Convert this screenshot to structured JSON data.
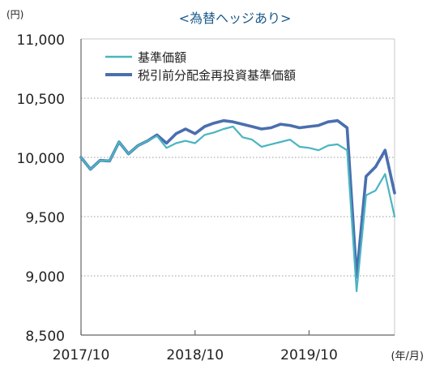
{
  "chart_data": {
    "type": "line",
    "title": "<為替ヘッジあり>",
    "ylabel": "(円)",
    "xlabel": "(年/月)",
    "ylim": [
      8500,
      11000
    ],
    "yticks": [
      8500,
      9000,
      9500,
      10000,
      10500,
      11000
    ],
    "ytick_labels": [
      "8,500",
      "9,000",
      "9,500",
      "10,000",
      "10,500",
      "11,000"
    ],
    "x_range": [
      "2017/10",
      "2020/07"
    ],
    "xtick_labels": [
      "2017/10",
      "2018/10",
      "2019/10"
    ],
    "grid": "horizontal-dotted",
    "legend_position": "top-left",
    "series": [
      {
        "name": "基準価額",
        "color": "#4ab5c1",
        "points": [
          [
            "2017-10",
            10000
          ],
          [
            "2017-11",
            9900
          ],
          [
            "2017-12",
            9975
          ],
          [
            "2018-01",
            9970
          ],
          [
            "2018-02",
            10130
          ],
          [
            "2018-03",
            10030
          ],
          [
            "2018-04",
            10100
          ],
          [
            "2018-05",
            10140
          ],
          [
            "2018-06",
            10180
          ],
          [
            "2018-07",
            10080
          ],
          [
            "2018-08",
            10120
          ],
          [
            "2018-09",
            10140
          ],
          [
            "2018-10",
            10120
          ],
          [
            "2018-11",
            10190
          ],
          [
            "2018-12",
            10210
          ],
          [
            "2019-01",
            10240
          ],
          [
            "2019-02",
            10260
          ],
          [
            "2019-03",
            10170
          ],
          [
            "2019-04",
            10150
          ],
          [
            "2019-05",
            10090
          ],
          [
            "2019-06",
            10110
          ],
          [
            "2019-07",
            10130
          ],
          [
            "2019-08",
            10150
          ],
          [
            "2019-09",
            10090
          ],
          [
            "2019-10",
            10080
          ],
          [
            "2019-11",
            10060
          ],
          [
            "2019-12",
            10100
          ],
          [
            "2020-01",
            10110
          ],
          [
            "2020-02",
            10060
          ],
          [
            "2020-03",
            8870
          ],
          [
            "2020-04",
            9680
          ],
          [
            "2020-05",
            9720
          ],
          [
            "2020-06",
            9860
          ],
          [
            "2020-07",
            9500
          ]
        ]
      },
      {
        "name": "税引前分配金再投資基準価額",
        "color": "#4a6fae",
        "points": [
          [
            "2017-10",
            10000
          ],
          [
            "2017-11",
            9900
          ],
          [
            "2017-12",
            9975
          ],
          [
            "2018-01",
            9970
          ],
          [
            "2018-02",
            10130
          ],
          [
            "2018-03",
            10030
          ],
          [
            "2018-04",
            10100
          ],
          [
            "2018-05",
            10140
          ],
          [
            "2018-06",
            10190
          ],
          [
            "2018-07",
            10120
          ],
          [
            "2018-08",
            10200
          ],
          [
            "2018-09",
            10240
          ],
          [
            "2018-10",
            10200
          ],
          [
            "2018-11",
            10260
          ],
          [
            "2018-12",
            10290
          ],
          [
            "2019-01",
            10310
          ],
          [
            "2019-02",
            10300
          ],
          [
            "2019-03",
            10280
          ],
          [
            "2019-04",
            10260
          ],
          [
            "2019-05",
            10240
          ],
          [
            "2019-06",
            10250
          ],
          [
            "2019-07",
            10280
          ],
          [
            "2019-08",
            10270
          ],
          [
            "2019-09",
            10250
          ],
          [
            "2019-10",
            10260
          ],
          [
            "2019-11",
            10270
          ],
          [
            "2019-12",
            10300
          ],
          [
            "2020-01",
            10310
          ],
          [
            "2020-02",
            10250
          ],
          [
            "2020-03",
            8990
          ],
          [
            "2020-04",
            9840
          ],
          [
            "2020-05",
            9920
          ],
          [
            "2020-06",
            10060
          ],
          [
            "2020-07",
            9700
          ]
        ]
      }
    ]
  }
}
